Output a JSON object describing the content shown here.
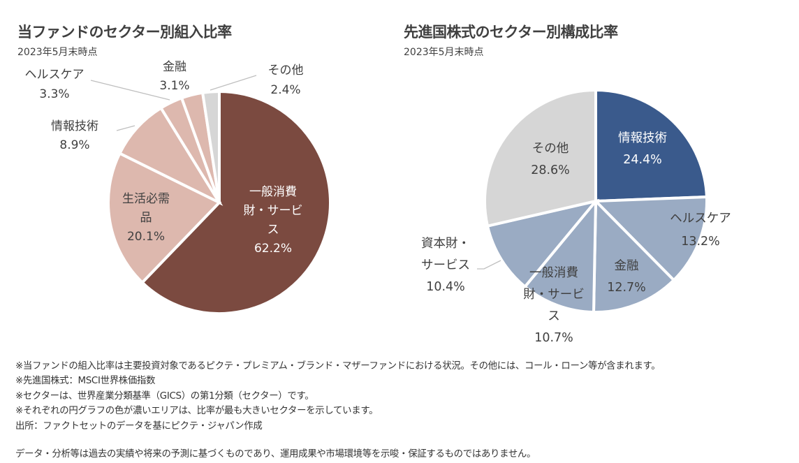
{
  "chart_data": [
    {
      "type": "pie",
      "title": "当ファンドのセクター別組入比率",
      "subtitle": "2023年5月末時点",
      "start": "12 o'clock, clockwise",
      "slices": [
        {
          "label_lines": [
            "一般消費",
            "財・サービ",
            "ス"
          ],
          "label": "一般消費財・サービス",
          "value": 62.2,
          "value_text": "62.2%",
          "color": "#7b4a40",
          "text_color": "#ffffff",
          "label_position": "inside"
        },
        {
          "label_lines": [
            "生活必需",
            "品"
          ],
          "label": "生活必需品",
          "value": 20.1,
          "value_text": "20.1%",
          "color": "#ddb8ae",
          "text_color": "#404040",
          "label_position": "inside"
        },
        {
          "label_lines": [
            "情報技術"
          ],
          "label": "情報技術",
          "value": 8.9,
          "value_text": "8.9%",
          "color": "#ddb8ae",
          "text_color": "#404040",
          "label_position": "outside"
        },
        {
          "label_lines": [
            "ヘルスケア"
          ],
          "label": "ヘルスケア",
          "value": 3.3,
          "value_text": "3.3%",
          "color": "#ddb8ae",
          "text_color": "#404040",
          "label_position": "outside"
        },
        {
          "label_lines": [
            "金融"
          ],
          "label": "金融",
          "value": 3.1,
          "value_text": "3.1%",
          "color": "#ddb8ae",
          "text_color": "#404040",
          "label_position": "outside"
        },
        {
          "label_lines": [
            "その他"
          ],
          "label": "その他",
          "value": 2.4,
          "value_text": "2.4%",
          "color": "#d6d6d6",
          "text_color": "#404040",
          "label_position": "outside"
        }
      ]
    },
    {
      "type": "pie",
      "title": "先進国株式のセクター別構成比率",
      "subtitle": "2023年5月末時点",
      "start": "12 o'clock, clockwise",
      "slices": [
        {
          "label_lines": [
            "情報技術"
          ],
          "label": "情報技術",
          "value": 24.4,
          "value_text": "24.4%",
          "color": "#3a5a8c",
          "text_color": "#ffffff",
          "label_position": "inside"
        },
        {
          "label_lines": [
            "ヘルスケア"
          ],
          "label": "ヘルスケア",
          "value": 13.2,
          "value_text": "13.2%",
          "color": "#9aabc3",
          "text_color": "#404040",
          "label_position": "inside"
        },
        {
          "label_lines": [
            "金融"
          ],
          "label": "金融",
          "value": 12.7,
          "value_text": "12.7%",
          "color": "#9aabc3",
          "text_color": "#404040",
          "label_position": "inside"
        },
        {
          "label_lines": [
            "一般消費",
            "財・サービ",
            "ス"
          ],
          "label": "一般消費財・サービス",
          "value": 10.7,
          "value_text": "10.7%",
          "color": "#9aabc3",
          "text_color": "#404040",
          "label_position": "inside"
        },
        {
          "label_lines": [
            "資本財・",
            "サービス"
          ],
          "label": "資本財・サービス",
          "value": 10.4,
          "value_text": "10.4%",
          "color": "#9aabc3",
          "text_color": "#404040",
          "label_position": "outside"
        },
        {
          "label_lines": [
            "その他"
          ],
          "label": "その他",
          "value": 28.6,
          "value_text": "28.6%",
          "color": "#d6d6d6",
          "text_color": "#404040",
          "label_position": "inside"
        }
      ]
    }
  ],
  "notes": [
    "※当ファンドの組入比率は主要投資対象であるピクテ・プレミアム・ブランド・マザーファンドにおける状況。その他には、コール・ローン等が含まれます。",
    "※先進国株式：MSCI世界株価指数",
    "※セクターは、世界産業分類基準（GICS）の第1分類（セクター）です。",
    "※それぞれの円グラフの色が濃いエリアは、比率が最も大きいセクターを示しています。",
    "出所：ファクトセットのデータを基にピクテ・ジャパン作成"
  ],
  "disclaimer": "データ・分析等は過去の実績や将来の予測に基づくものであり、運用成果や市場環境等を示唆・保証するものではありません。"
}
